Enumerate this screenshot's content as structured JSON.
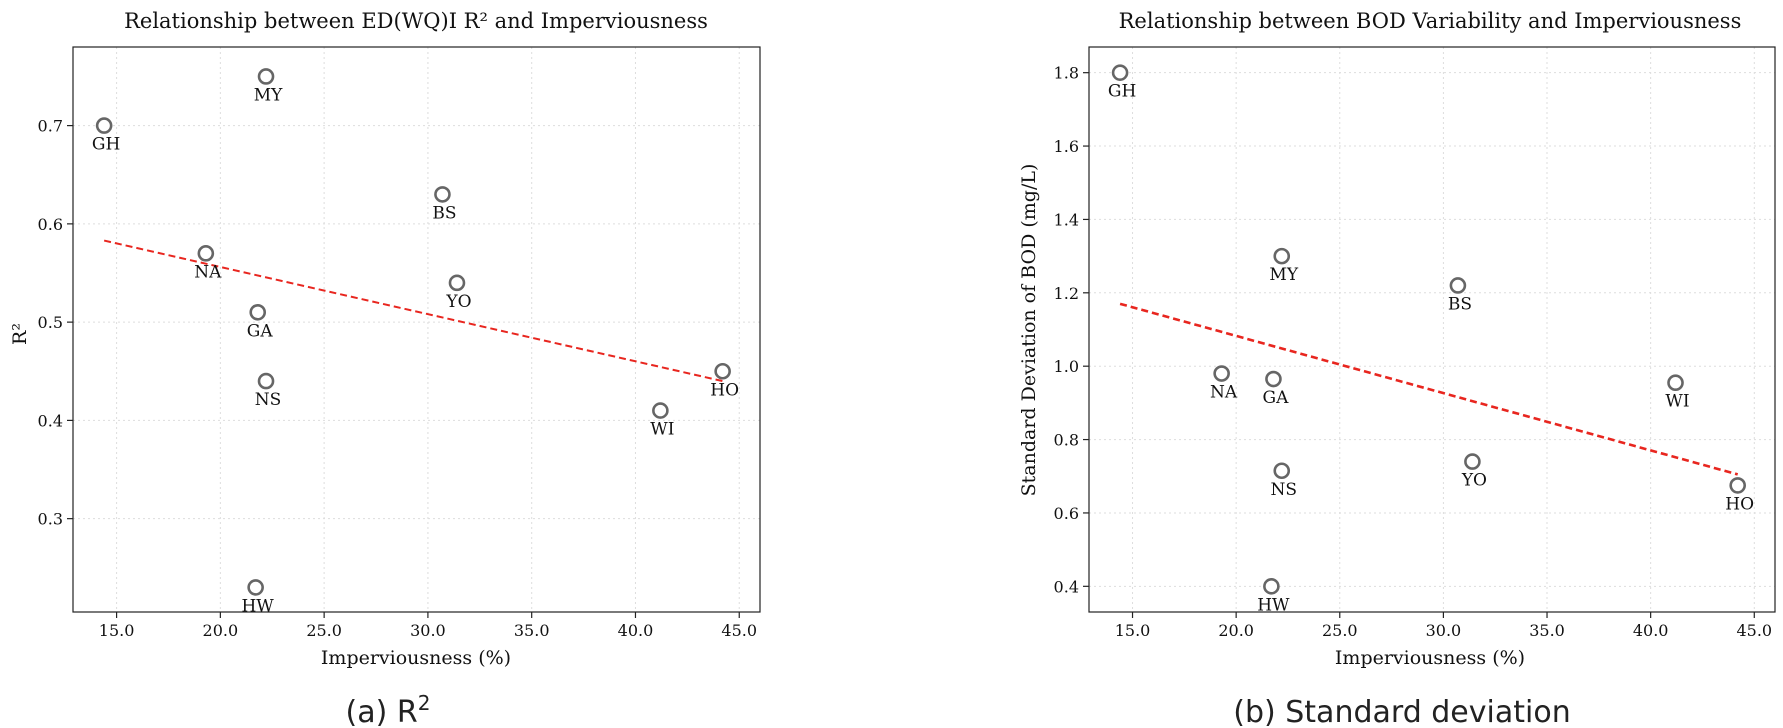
{
  "charts": [
    {
      "chart_data": {
        "type": "scatter",
        "title": "Relationship between ED(WQ)I R² and Imperviousness",
        "xlabel": "Imperviousness (%)",
        "ylabel": "R²",
        "xlim": [
          12.9,
          46.0
        ],
        "ylim": [
          0.205,
          0.78
        ],
        "xticks": [
          15,
          20,
          25,
          30,
          35,
          40,
          45
        ],
        "xtick_labels": [
          "15.0",
          "20.0",
          "25.0",
          "30.0",
          "35.0",
          "40.0",
          "45.0"
        ],
        "yticks": [
          0.3,
          0.4,
          0.5,
          0.6,
          0.7
        ],
        "ytick_labels": [
          "0.3",
          "0.4",
          "0.5",
          "0.6",
          "0.7"
        ],
        "grid": true,
        "points": [
          {
            "label": "GH",
            "x": 14.4,
            "y": 0.7
          },
          {
            "label": "MY",
            "x": 22.2,
            "y": 0.75
          },
          {
            "label": "BS",
            "x": 30.7,
            "y": 0.63
          },
          {
            "label": "NA",
            "x": 19.3,
            "y": 0.57
          },
          {
            "label": "YO",
            "x": 31.4,
            "y": 0.54
          },
          {
            "label": "GA",
            "x": 21.8,
            "y": 0.51
          },
          {
            "label": "HO",
            "x": 44.2,
            "y": 0.45
          },
          {
            "label": "NS",
            "x": 22.2,
            "y": 0.44
          },
          {
            "label": "WI",
            "x": 41.2,
            "y": 0.41
          },
          {
            "label": "HW",
            "x": 21.7,
            "y": 0.23
          }
        ],
        "trendline": {
          "x": [
            14.4,
            44.2
          ],
          "y": [
            0.583,
            0.44
          ]
        }
      },
      "caption": "(a) R",
      "caption_sup": "2"
    },
    {
      "chart_data": {
        "type": "scatter",
        "title": "Relationship between BOD Variability and Imperviousness",
        "xlabel": "Imperviousness (%)",
        "ylabel": "Standard Deviation of BOD (mg/L)",
        "xlim": [
          12.9,
          46.0
        ],
        "ylim": [
          0.33,
          1.87
        ],
        "xticks": [
          15,
          20,
          25,
          30,
          35,
          40,
          45
        ],
        "xtick_labels": [
          "15.0",
          "20.0",
          "25.0",
          "30.0",
          "35.0",
          "40.0",
          "45.0"
        ],
        "yticks": [
          0.4,
          0.6,
          0.8,
          1.0,
          1.2,
          1.4,
          1.6,
          1.8
        ],
        "ytick_labels": [
          "0.4",
          "0.6",
          "0.8",
          "1.0",
          "1.2",
          "1.4",
          "1.6",
          "1.8"
        ],
        "grid": true,
        "points": [
          {
            "label": "GH",
            "x": 14.4,
            "y": 1.8
          },
          {
            "label": "MY",
            "x": 22.2,
            "y": 1.3
          },
          {
            "label": "BS",
            "x": 30.7,
            "y": 1.22
          },
          {
            "label": "NA",
            "x": 19.3,
            "y": 0.98
          },
          {
            "label": "GA",
            "x": 21.8,
            "y": 0.965
          },
          {
            "label": "WI",
            "x": 41.2,
            "y": 0.955
          },
          {
            "label": "YO",
            "x": 31.4,
            "y": 0.74
          },
          {
            "label": "NS",
            "x": 22.2,
            "y": 0.715
          },
          {
            "label": "HO",
            "x": 44.2,
            "y": 0.675
          },
          {
            "label": "HW",
            "x": 21.7,
            "y": 0.4
          }
        ],
        "trendline": {
          "x": [
            14.4,
            44.2
          ],
          "y": [
            1.17,
            0.705
          ]
        }
      },
      "caption": "(b) Standard deviation",
      "caption_sup": ""
    }
  ]
}
